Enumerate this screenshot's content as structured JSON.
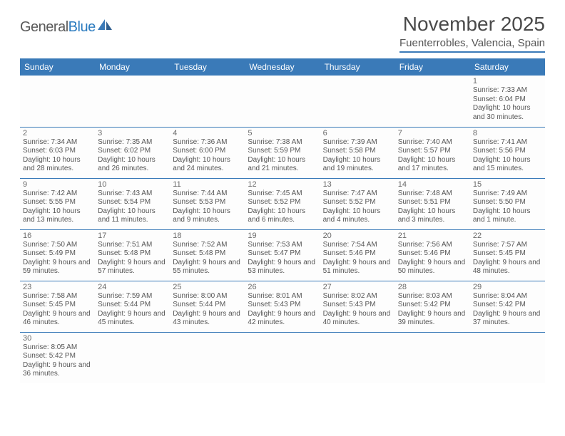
{
  "logo": {
    "part1": "General",
    "part2": "Blue"
  },
  "title": "November 2025",
  "location": "Fuenterrobles, Valencia, Spain",
  "colors": {
    "header_bar": "#3a7ab8",
    "header_text": "#ffffff",
    "border": "#3a7ab8",
    "title_color": "#4a4a4a",
    "body_text": "#555555"
  },
  "weekdays": [
    "Sunday",
    "Monday",
    "Tuesday",
    "Wednesday",
    "Thursday",
    "Friday",
    "Saturday"
  ],
  "weeks": [
    [
      null,
      null,
      null,
      null,
      null,
      null,
      {
        "n": "1",
        "sunrise": "Sunrise: 7:33 AM",
        "sunset": "Sunset: 6:04 PM",
        "daylight": "Daylight: 10 hours and 30 minutes."
      }
    ],
    [
      {
        "n": "2",
        "sunrise": "Sunrise: 7:34 AM",
        "sunset": "Sunset: 6:03 PM",
        "daylight": "Daylight: 10 hours and 28 minutes."
      },
      {
        "n": "3",
        "sunrise": "Sunrise: 7:35 AM",
        "sunset": "Sunset: 6:02 PM",
        "daylight": "Daylight: 10 hours and 26 minutes."
      },
      {
        "n": "4",
        "sunrise": "Sunrise: 7:36 AM",
        "sunset": "Sunset: 6:00 PM",
        "daylight": "Daylight: 10 hours and 24 minutes."
      },
      {
        "n": "5",
        "sunrise": "Sunrise: 7:38 AM",
        "sunset": "Sunset: 5:59 PM",
        "daylight": "Daylight: 10 hours and 21 minutes."
      },
      {
        "n": "6",
        "sunrise": "Sunrise: 7:39 AM",
        "sunset": "Sunset: 5:58 PM",
        "daylight": "Daylight: 10 hours and 19 minutes."
      },
      {
        "n": "7",
        "sunrise": "Sunrise: 7:40 AM",
        "sunset": "Sunset: 5:57 PM",
        "daylight": "Daylight: 10 hours and 17 minutes."
      },
      {
        "n": "8",
        "sunrise": "Sunrise: 7:41 AM",
        "sunset": "Sunset: 5:56 PM",
        "daylight": "Daylight: 10 hours and 15 minutes."
      }
    ],
    [
      {
        "n": "9",
        "sunrise": "Sunrise: 7:42 AM",
        "sunset": "Sunset: 5:55 PM",
        "daylight": "Daylight: 10 hours and 13 minutes."
      },
      {
        "n": "10",
        "sunrise": "Sunrise: 7:43 AM",
        "sunset": "Sunset: 5:54 PM",
        "daylight": "Daylight: 10 hours and 11 minutes."
      },
      {
        "n": "11",
        "sunrise": "Sunrise: 7:44 AM",
        "sunset": "Sunset: 5:53 PM",
        "daylight": "Daylight: 10 hours and 9 minutes."
      },
      {
        "n": "12",
        "sunrise": "Sunrise: 7:45 AM",
        "sunset": "Sunset: 5:52 PM",
        "daylight": "Daylight: 10 hours and 6 minutes."
      },
      {
        "n": "13",
        "sunrise": "Sunrise: 7:47 AM",
        "sunset": "Sunset: 5:52 PM",
        "daylight": "Daylight: 10 hours and 4 minutes."
      },
      {
        "n": "14",
        "sunrise": "Sunrise: 7:48 AM",
        "sunset": "Sunset: 5:51 PM",
        "daylight": "Daylight: 10 hours and 3 minutes."
      },
      {
        "n": "15",
        "sunrise": "Sunrise: 7:49 AM",
        "sunset": "Sunset: 5:50 PM",
        "daylight": "Daylight: 10 hours and 1 minute."
      }
    ],
    [
      {
        "n": "16",
        "sunrise": "Sunrise: 7:50 AM",
        "sunset": "Sunset: 5:49 PM",
        "daylight": "Daylight: 9 hours and 59 minutes."
      },
      {
        "n": "17",
        "sunrise": "Sunrise: 7:51 AM",
        "sunset": "Sunset: 5:48 PM",
        "daylight": "Daylight: 9 hours and 57 minutes."
      },
      {
        "n": "18",
        "sunrise": "Sunrise: 7:52 AM",
        "sunset": "Sunset: 5:48 PM",
        "daylight": "Daylight: 9 hours and 55 minutes."
      },
      {
        "n": "19",
        "sunrise": "Sunrise: 7:53 AM",
        "sunset": "Sunset: 5:47 PM",
        "daylight": "Daylight: 9 hours and 53 minutes."
      },
      {
        "n": "20",
        "sunrise": "Sunrise: 7:54 AM",
        "sunset": "Sunset: 5:46 PM",
        "daylight": "Daylight: 9 hours and 51 minutes."
      },
      {
        "n": "21",
        "sunrise": "Sunrise: 7:56 AM",
        "sunset": "Sunset: 5:46 PM",
        "daylight": "Daylight: 9 hours and 50 minutes."
      },
      {
        "n": "22",
        "sunrise": "Sunrise: 7:57 AM",
        "sunset": "Sunset: 5:45 PM",
        "daylight": "Daylight: 9 hours and 48 minutes."
      }
    ],
    [
      {
        "n": "23",
        "sunrise": "Sunrise: 7:58 AM",
        "sunset": "Sunset: 5:45 PM",
        "daylight": "Daylight: 9 hours and 46 minutes."
      },
      {
        "n": "24",
        "sunrise": "Sunrise: 7:59 AM",
        "sunset": "Sunset: 5:44 PM",
        "daylight": "Daylight: 9 hours and 45 minutes."
      },
      {
        "n": "25",
        "sunrise": "Sunrise: 8:00 AM",
        "sunset": "Sunset: 5:44 PM",
        "daylight": "Daylight: 9 hours and 43 minutes."
      },
      {
        "n": "26",
        "sunrise": "Sunrise: 8:01 AM",
        "sunset": "Sunset: 5:43 PM",
        "daylight": "Daylight: 9 hours and 42 minutes."
      },
      {
        "n": "27",
        "sunrise": "Sunrise: 8:02 AM",
        "sunset": "Sunset: 5:43 PM",
        "daylight": "Daylight: 9 hours and 40 minutes."
      },
      {
        "n": "28",
        "sunrise": "Sunrise: 8:03 AM",
        "sunset": "Sunset: 5:42 PM",
        "daylight": "Daylight: 9 hours and 39 minutes."
      },
      {
        "n": "29",
        "sunrise": "Sunrise: 8:04 AM",
        "sunset": "Sunset: 5:42 PM",
        "daylight": "Daylight: 9 hours and 37 minutes."
      }
    ],
    [
      {
        "n": "30",
        "sunrise": "Sunrise: 8:05 AM",
        "sunset": "Sunset: 5:42 PM",
        "daylight": "Daylight: 9 hours and 36 minutes."
      },
      null,
      null,
      null,
      null,
      null,
      null
    ]
  ]
}
